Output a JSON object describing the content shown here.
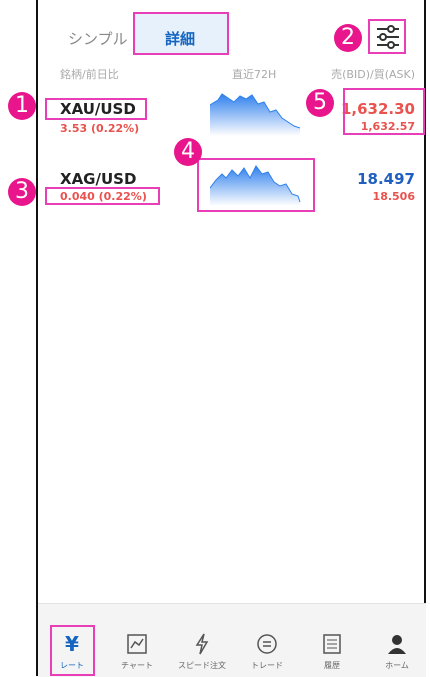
{
  "tabs": [
    "シンプル",
    "詳細"
  ],
  "columns": [
    "銘柄/前日比",
    "直近72H",
    "売(BID)/買(ASK)"
  ],
  "rows": [
    {
      "symbol": "XAU/USD",
      "change": "3.53 (0.22%)",
      "bid": "1,632.30",
      "ask": "1,632.57"
    },
    {
      "symbol": "XAG/USD",
      "change": "0.040 (0.22%)",
      "bid": "18.497",
      "ask": "18.506"
    }
  ],
  "nav": [
    "レート",
    "チャート",
    "スピード注文",
    "トレード",
    "履歴",
    "ホーム"
  ],
  "callouts": [
    "1",
    "2",
    "3",
    "4",
    "5"
  ]
}
